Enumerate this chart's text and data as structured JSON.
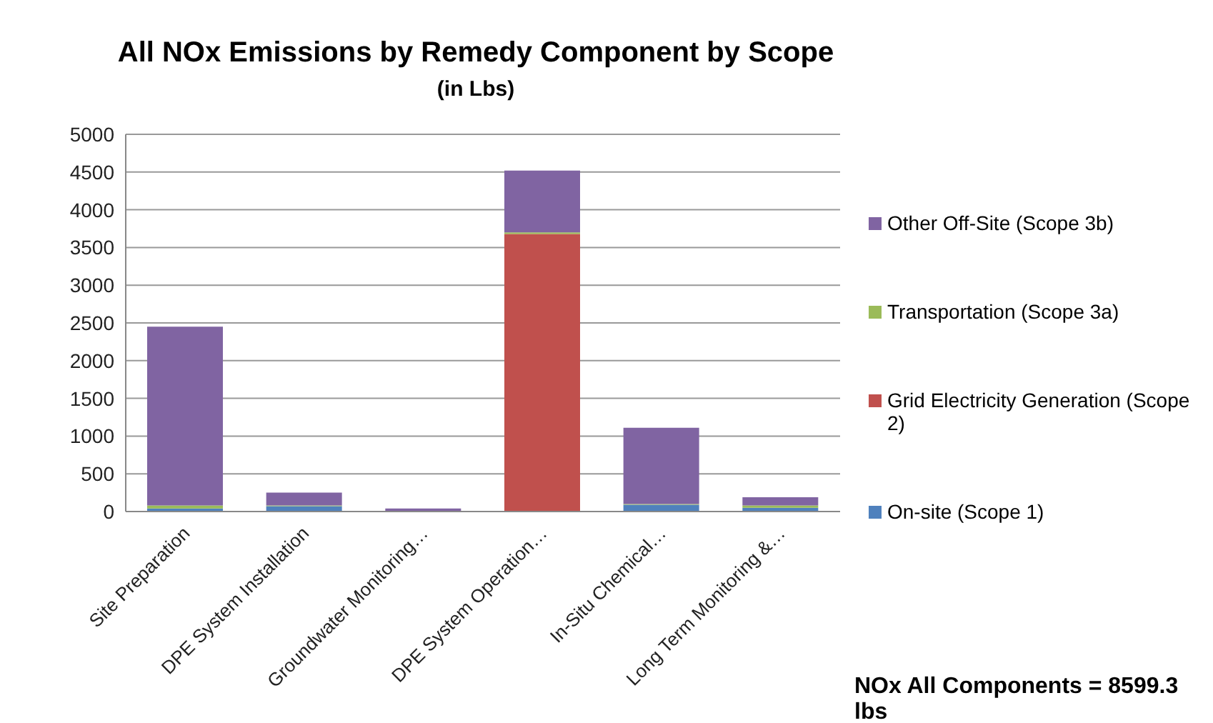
{
  "chart_data": {
    "type": "bar",
    "title": "All NOx Emissions by Remedy Component by Scope",
    "subtitle": "(in Lbs)",
    "categories": [
      "Site Preparation",
      "DPE System Installation",
      "Groundwater Monitoring…",
      "DPE System Operation…",
      "In-Situ Chemical…",
      "Long Term Monitoring &…"
    ],
    "series": [
      {
        "name": "On-site (Scope 1)",
        "color": "#4f81bd",
        "values": [
          40,
          70,
          0,
          0,
          90,
          50
        ]
      },
      {
        "name": "Grid Electricity Generation (Scope 2)",
        "color": "#c0504d",
        "values": [
          0,
          0,
          0,
          3680,
          0,
          0
        ]
      },
      {
        "name": "Transportation (Scope 3a)",
        "color": "#9bbb59",
        "values": [
          40,
          10,
          0,
          20,
          10,
          30
        ]
      },
      {
        "name": "Other Off-Site (Scope 3b)",
        "color": "#8064a2",
        "values": [
          2370,
          170,
          40,
          820,
          1010,
          110
        ]
      }
    ],
    "stacked": true,
    "ylim": [
      0,
      5000
    ],
    "yticks": [
      0,
      500,
      1000,
      1500,
      2000,
      2500,
      3000,
      3500,
      4000,
      4500,
      5000
    ],
    "grid": "y",
    "legend": "right",
    "annotations": [
      "NOx All Components = 8599.3 lbs"
    ]
  }
}
